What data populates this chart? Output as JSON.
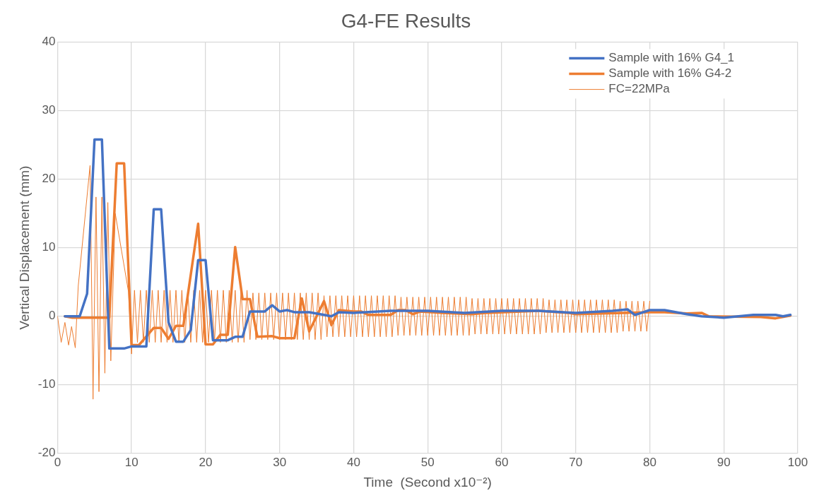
{
  "chart_data": {
    "type": "line",
    "title": "G4-FE Results",
    "xlabel": "Time  (Second x10⁻²)",
    "ylabel": "Vertical Displacement (mm)",
    "xlim": [
      0,
      100
    ],
    "xticks": [
      0,
      10,
      20,
      30,
      40,
      50,
      60,
      70,
      80,
      90,
      100
    ],
    "ylim": [
      -20,
      40
    ],
    "yticks": [
      -20,
      -10,
      0,
      10,
      20,
      30,
      40
    ],
    "grid": true,
    "legend": "top right",
    "marker": "none",
    "line_style": "solid",
    "series": [
      {
        "name": "Sample with 16% G4_1",
        "color": "#4472c4",
        "x": [
          1,
          2,
          3,
          4,
          5,
          6,
          7,
          8,
          9,
          10,
          11,
          12,
          13,
          14,
          15,
          16,
          17,
          18,
          19,
          20,
          21,
          22,
          23,
          24,
          25,
          26,
          27,
          28,
          29,
          30,
          31,
          32,
          34,
          36,
          37,
          38,
          40,
          45,
          50,
          55,
          60,
          65,
          70,
          75,
          77,
          78,
          80,
          82,
          85,
          87,
          90,
          92,
          94,
          97,
          98,
          99
        ],
        "values": [
          0,
          0,
          0,
          3.3,
          25.8,
          25.8,
          -4.7,
          -4.7,
          -4.7,
          -4.4,
          -4.4,
          -4.4,
          15.6,
          15.6,
          -0.9,
          -3.7,
          -3.7,
          -2,
          8.2,
          8.2,
          -3.5,
          -3.5,
          -3.5,
          -3,
          -3,
          0.7,
          0.7,
          0.7,
          1.6,
          0.7,
          0.9,
          0.6,
          0.6,
          0.2,
          0,
          0.6,
          0.5,
          0.8,
          0.8,
          0.5,
          0.8,
          0.8,
          0.5,
          0.8,
          1,
          0.2,
          0.9,
          0.9,
          0.3,
          0,
          -0.2,
          0,
          0.2,
          0.2,
          0,
          0.2
        ]
      },
      {
        "name": "Sample with 16% G4-2",
        "color": "#ed7d31",
        "x": [
          1,
          2,
          3,
          4,
          5,
          6,
          7,
          8,
          9,
          10,
          11,
          13,
          14,
          15,
          16,
          17,
          19,
          20,
          21,
          22,
          23,
          24,
          25,
          26,
          27,
          29,
          30,
          32,
          33,
          34,
          36,
          37,
          38,
          40,
          41,
          42,
          45,
          46,
          47,
          48,
          49,
          52,
          56,
          58,
          65,
          69,
          70,
          80,
          82,
          85,
          87,
          88,
          95,
          97,
          99
        ],
        "values": [
          0,
          -0.2,
          -0.2,
          -0.2,
          -0.2,
          -0.2,
          -0.2,
          22.3,
          22.3,
          -4.2,
          -4.2,
          -1.7,
          -1.7,
          -3.3,
          -1.4,
          -1.4,
          13.5,
          -4.1,
          -4.1,
          -2.7,
          -2.7,
          10.1,
          2.5,
          2.5,
          -3,
          -2.9,
          -3.2,
          -3.2,
          2.6,
          -2.2,
          2.2,
          -1.3,
          0.9,
          0.7,
          0.7,
          0.2,
          0.2,
          0.9,
          0.9,
          0.3,
          0.7,
          0.5,
          0.3,
          0.5,
          0.8,
          0.5,
          0.3,
          0.6,
          0.6,
          0.4,
          0.5,
          0,
          -0.1,
          -0.3,
          0.1
        ]
      },
      {
        "name": "FC=22MPa",
        "color": "#ed7d31",
        "x": [
          0,
          0.5,
          1,
          1.5,
          1.9,
          2.4,
          2.8,
          4.4,
          4.8,
          5.2,
          5.6,
          6,
          6.4,
          6.8,
          7.2,
          7.8,
          9.6,
          10,
          10.4,
          10.8,
          11.2,
          11.6,
          12,
          12.4,
          12.8,
          13.2,
          13.6,
          14,
          14.4,
          14.8,
          15.2,
          15.6,
          16,
          16.4,
          16.8,
          17.2,
          17.6,
          18,
          18.4,
          18.8,
          19.2,
          19.6,
          20,
          20.4,
          20.8,
          21.2,
          21.6,
          22,
          22.4,
          22.8,
          23.2,
          23.6,
          24,
          24.4,
          24.8,
          25.2,
          25.6,
          26,
          26.4,
          26.8,
          27.2,
          27.6,
          28,
          28.4,
          28.8,
          29.2,
          29.6,
          30,
          30.4,
          30.8,
          31.2,
          31.6,
          32,
          32.4,
          32.8,
          33.2,
          33.6,
          34,
          34.4,
          34.8,
          35.2,
          35.6,
          36,
          36.4,
          36.8,
          37.2,
          37.6,
          38,
          38.4,
          38.8,
          39.2,
          39.6,
          40,
          40.4,
          40.8,
          41.2,
          41.6,
          42,
          42.4,
          42.8,
          43.2,
          43.6,
          44,
          44.4,
          44.8,
          45.2,
          45.6,
          46,
          46.4,
          46.8,
          47.2,
          47.6,
          48,
          48.4,
          48.8,
          49.2,
          49.6,
          50,
          50.4,
          50.8,
          51.2,
          51.6,
          52,
          52.4,
          52.8,
          53.2,
          53.6,
          54,
          54.4,
          54.8,
          55.2,
          55.6,
          56,
          56.4,
          56.8,
          57.2,
          57.6,
          58,
          58.4,
          58.8,
          59.2,
          59.6,
          60,
          60.4,
          60.8,
          61.2,
          61.6,
          62,
          62.4,
          62.8,
          63.2,
          63.6,
          64,
          64.4,
          64.8,
          65.2,
          65.6,
          66,
          66.4,
          66.8,
          67.2,
          67.6,
          68,
          68.4,
          68.8,
          69.2,
          69.6,
          70,
          70.4,
          70.8,
          71.2,
          71.6,
          72,
          72.4,
          72.8,
          73.2,
          73.6,
          74,
          74.4,
          74.8,
          75.2,
          75.6,
          76,
          76.4,
          76.8,
          77.2,
          77.6,
          78,
          78.4,
          78.8,
          79.2,
          79.6,
          80
        ],
        "values": [
          0,
          -3.8,
          -0.9,
          -4.2,
          -1.5,
          -4.6,
          4.4,
          22,
          -12.1,
          17.4,
          -11,
          17.4,
          -8.3,
          16.6,
          -6.5,
          15,
          3.5,
          -5.5,
          3.8,
          -3.8,
          3.8,
          -3.8,
          3.8,
          -3.8,
          3.8,
          -3.8,
          3.8,
          -3.8,
          3.8,
          -3.8,
          3.8,
          -3.8,
          3.8,
          -3.8,
          3.8,
          -3.8,
          3.8,
          -3.8,
          3.8,
          -3.8,
          3.8,
          -3.8,
          3.8,
          -3.8,
          3.8,
          -3.8,
          3.8,
          -3.8,
          3.8,
          -3.8,
          3.8,
          -3.8,
          3.8,
          -3.8,
          3.8,
          -3.8,
          3.8,
          -3.4,
          3.4,
          -3.4,
          3.4,
          -3.4,
          3.4,
          -3.4,
          3.4,
          -3.4,
          3.4,
          -3.4,
          3.4,
          -3.4,
          3.4,
          -3.4,
          3.4,
          -3.4,
          3.4,
          -3.4,
          3.4,
          -3.4,
          3.4,
          -3.4,
          3.4,
          -3.4,
          3,
          -3,
          3,
          -3,
          3,
          -3,
          3,
          -3,
          3,
          -3,
          3,
          -3,
          3,
          -3,
          3,
          -3,
          3,
          -3,
          3,
          -3,
          3,
          -3,
          3,
          -3,
          3,
          -2.8,
          2.8,
          -2.8,
          2.8,
          -2.8,
          2.8,
          -2.8,
          2.8,
          -2.8,
          2.8,
          -2.8,
          2.8,
          -2.8,
          2.8,
          -2.8,
          2.8,
          -2.8,
          2.8,
          -2.8,
          2.8,
          -2.8,
          2.8,
          -2.8,
          2.8,
          -2.8,
          2.6,
          -2.6,
          2.6,
          -2.6,
          2.6,
          -2.6,
          2.6,
          -2.6,
          2.6,
          -2.6,
          2.6,
          -2.6,
          2.6,
          -2.6,
          2.6,
          -2.6,
          2.6,
          -2.6,
          2.6,
          -2.6,
          2.6,
          -2.6,
          2.6,
          -2.6,
          2.6,
          -2.4,
          2.4,
          -2.4,
          2.4,
          -2.4,
          2.4,
          -2.4,
          2.4,
          -2.4,
          2.4,
          -2.4,
          2.4,
          -2.4,
          2.4,
          -2.4,
          2.4,
          -2.4,
          2.4,
          -2.4,
          2.4,
          -2.4,
          2.4,
          -2.4,
          2.4,
          -2.4,
          2.2,
          -2.2,
          2.2,
          -2.2,
          2.2,
          -2.2,
          2.2,
          -2.2,
          2.2,
          -2.2,
          2.2
        ]
      }
    ]
  }
}
